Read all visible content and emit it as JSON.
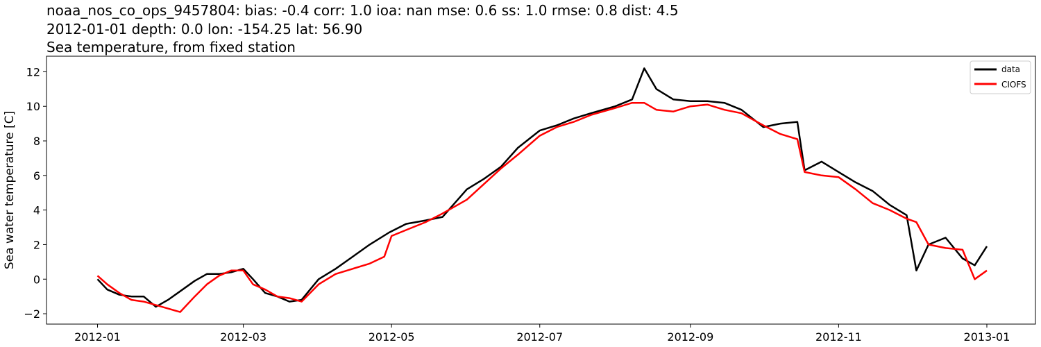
{
  "chart_data": {
    "type": "line",
    "title_lines": [
      "noaa_nos_co_ops_9457804: bias: -0.4  corr: 1.0  ioa: nan  mse: 0.6  ss: 1.0  rmse: 0.8  dist: 4.5",
      "2012-01-01 depth: 0.0 lon: -154.25 lat: 56.90",
      "Sea temperature, from fixed station"
    ],
    "xlabel": "",
    "ylabel": "Sea water temperature [C]",
    "xlim": [
      "2011-12-11",
      "2013-01-21"
    ],
    "ylim": [
      -2.6,
      12.9
    ],
    "x_ticks": [
      "2012-01",
      "2012-03",
      "2012-05",
      "2012-07",
      "2012-09",
      "2012-11",
      "2013-01"
    ],
    "y_ticks": [
      -2,
      0,
      2,
      4,
      6,
      8,
      10,
      12
    ],
    "legend_position": "top-right",
    "series": [
      {
        "name": "data",
        "color": "#000000",
        "x": [
          "2012-01-01",
          "2012-01-05",
          "2012-01-10",
          "2012-01-15",
          "2012-01-20",
          "2012-01-25",
          "2012-01-30",
          "2012-02-05",
          "2012-02-10",
          "2012-02-15",
          "2012-02-20",
          "2012-02-25",
          "2012-03-01",
          "2012-03-05",
          "2012-03-10",
          "2012-03-15",
          "2012-03-20",
          "2012-03-25",
          "2012-04-01",
          "2012-04-08",
          "2012-04-15",
          "2012-04-22",
          "2012-04-30",
          "2012-05-07",
          "2012-05-15",
          "2012-05-22",
          "2012-06-01",
          "2012-06-08",
          "2012-06-15",
          "2012-06-22",
          "2012-07-01",
          "2012-07-08",
          "2012-07-15",
          "2012-07-22",
          "2012-08-01",
          "2012-08-08",
          "2012-08-13",
          "2012-08-18",
          "2012-08-25",
          "2012-09-01",
          "2012-09-08",
          "2012-09-15",
          "2012-09-22",
          "2012-10-01",
          "2012-10-08",
          "2012-10-15",
          "2012-10-18",
          "2012-10-25",
          "2012-11-01",
          "2012-11-08",
          "2012-11-15",
          "2012-11-22",
          "2012-11-29",
          "2012-12-03",
          "2012-12-08",
          "2012-12-15",
          "2012-12-22",
          "2012-12-27",
          "2013-01-01"
        ],
        "y": [
          0.0,
          -0.6,
          -0.9,
          -1.0,
          -1.0,
          -1.6,
          -1.2,
          -0.6,
          -0.1,
          0.3,
          0.3,
          0.4,
          0.6,
          0.0,
          -0.8,
          -1.0,
          -1.3,
          -1.2,
          0.0,
          0.6,
          1.3,
          2.0,
          2.7,
          3.2,
          3.4,
          3.6,
          5.2,
          5.8,
          6.5,
          7.6,
          8.6,
          8.9,
          9.3,
          9.6,
          10.0,
          10.4,
          12.2,
          11.0,
          10.4,
          10.3,
          10.3,
          10.2,
          9.8,
          8.8,
          9.0,
          9.1,
          6.3,
          6.8,
          6.2,
          5.6,
          5.1,
          4.3,
          3.7,
          0.5,
          2.0,
          2.4,
          1.2,
          0.8,
          1.9
        ]
      },
      {
        "name": "CIOFS",
        "color": "#ff0000",
        "x": [
          "2012-01-01",
          "2012-01-05",
          "2012-01-10",
          "2012-01-15",
          "2012-01-20",
          "2012-01-25",
          "2012-01-30",
          "2012-02-04",
          "2012-02-10",
          "2012-02-15",
          "2012-02-20",
          "2012-02-25",
          "2012-03-01",
          "2012-03-05",
          "2012-03-10",
          "2012-03-15",
          "2012-03-20",
          "2012-03-25",
          "2012-04-01",
          "2012-04-08",
          "2012-04-15",
          "2012-04-22",
          "2012-04-28",
          "2012-05-01",
          "2012-05-08",
          "2012-05-15",
          "2012-05-22",
          "2012-06-01",
          "2012-06-08",
          "2012-06-15",
          "2012-06-22",
          "2012-07-01",
          "2012-07-08",
          "2012-07-15",
          "2012-07-22",
          "2012-08-01",
          "2012-08-08",
          "2012-08-13",
          "2012-08-18",
          "2012-08-25",
          "2012-09-01",
          "2012-09-08",
          "2012-09-15",
          "2012-09-22",
          "2012-10-01",
          "2012-10-08",
          "2012-10-15",
          "2012-10-18",
          "2012-10-25",
          "2012-11-01",
          "2012-11-08",
          "2012-11-15",
          "2012-11-22",
          "2012-11-29",
          "2012-12-03",
          "2012-12-08",
          "2012-12-15",
          "2012-12-22",
          "2012-12-27",
          "2013-01-01"
        ],
        "y": [
          0.2,
          -0.3,
          -0.8,
          -1.2,
          -1.3,
          -1.5,
          -1.7,
          -1.9,
          -1.0,
          -0.3,
          0.2,
          0.5,
          0.5,
          -0.3,
          -0.6,
          -1.0,
          -1.1,
          -1.3,
          -0.3,
          0.3,
          0.6,
          0.9,
          1.3,
          2.5,
          2.9,
          3.3,
          3.8,
          4.6,
          5.5,
          6.4,
          7.2,
          8.3,
          8.8,
          9.1,
          9.5,
          9.9,
          10.2,
          10.2,
          9.8,
          9.7,
          10.0,
          10.1,
          9.8,
          9.6,
          8.9,
          8.4,
          8.1,
          6.2,
          6.0,
          5.9,
          5.2,
          4.4,
          4.0,
          3.5,
          3.3,
          2.0,
          1.8,
          1.7,
          0.0,
          0.5
        ]
      }
    ]
  }
}
